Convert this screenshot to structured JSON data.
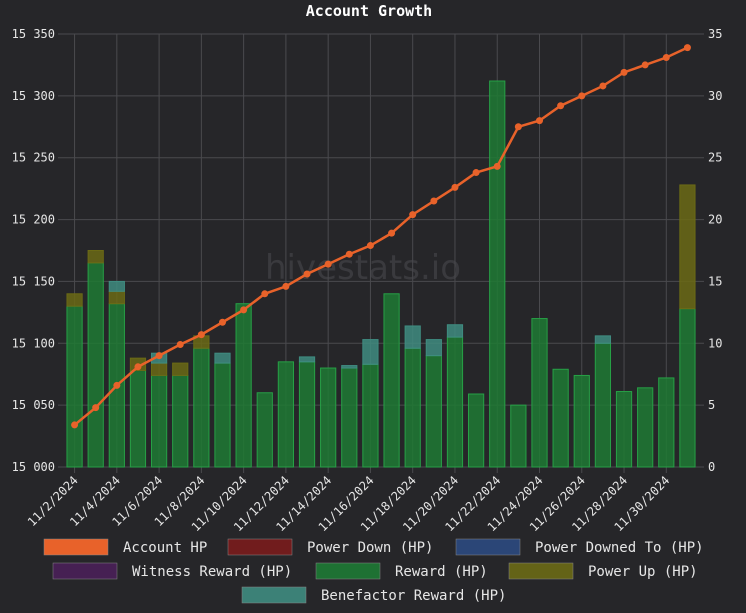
{
  "page": {
    "watermark": "hivestats.io"
  },
  "chart_data": {
    "type": "bar",
    "title": "Account Growth",
    "xlabel": "",
    "ylabel_left": "",
    "ylabel_right": "",
    "x": [
      "11/2/2024",
      "11/3/2024",
      "11/4/2024",
      "11/5/2024",
      "11/6/2024",
      "11/7/2024",
      "11/8/2024",
      "11/9/2024",
      "11/10/2024",
      "11/11/2024",
      "11/12/2024",
      "11/13/2024",
      "11/14/2024",
      "11/15/2024",
      "11/16/2024",
      "11/17/2024",
      "11/18/2024",
      "11/19/2024",
      "11/20/2024",
      "11/21/2024",
      "11/22/2024",
      "11/23/2024",
      "11/24/2024",
      "11/25/2024",
      "11/26/2024",
      "11/27/2024",
      "11/28/2024",
      "11/29/2024",
      "11/30/2024",
      "12/1/2024"
    ],
    "x_tick_labels": [
      "11/2/2024",
      "11/4/2024",
      "11/6/2024",
      "11/8/2024",
      "11/10/2024",
      "11/12/2024",
      "11/14/2024",
      "11/16/2024",
      "11/18/2024",
      "11/20/2024",
      "11/22/2024",
      "11/24/2024",
      "11/26/2024",
      "11/28/2024",
      "11/30/2024"
    ],
    "y_left": {
      "ylim": [
        15000,
        15350
      ],
      "ticks": [
        "15 000",
        "15 050",
        "15 100",
        "15 150",
        "15 200",
        "15 250",
        "15 300",
        "15 350"
      ]
    },
    "y_right": {
      "ylim": [
        0,
        35
      ],
      "ticks": [
        "0",
        "5",
        "10",
        "15",
        "20",
        "25",
        "30",
        "35"
      ]
    },
    "grid": true,
    "legend_position": "bottom",
    "series": [
      {
        "name": "Account HP",
        "type": "line",
        "axis": "left",
        "color": "#e8622a",
        "values": [
          15034,
          15048,
          15066,
          15081,
          15090,
          15099,
          15107,
          15117,
          15127,
          15140,
          15146,
          15156,
          15164,
          15172,
          15179,
          15189,
          15204,
          15215,
          15226,
          15238,
          15243,
          15275,
          15280,
          15292,
          15300,
          15308,
          15319,
          15325,
          15331,
          15339
        ]
      },
      {
        "name": "Power Down (HP)",
        "type": "bar",
        "axis": "right",
        "color": "#7a1c1c",
        "values": [
          0,
          0,
          0,
          0,
          0,
          0,
          0,
          0,
          0,
          0,
          0,
          0,
          0,
          0,
          0,
          0,
          0,
          0,
          0,
          0,
          0,
          0,
          0,
          0,
          0,
          0,
          0,
          0,
          0,
          0
        ]
      },
      {
        "name": "Power Downed To (HP)",
        "type": "bar",
        "axis": "right",
        "color": "#2c4a80",
        "values": [
          0,
          0,
          0,
          0,
          0,
          0,
          0,
          0,
          0,
          0,
          0,
          0,
          0,
          0,
          0,
          0,
          0,
          0,
          0,
          0,
          0,
          0,
          0,
          0,
          0,
          0,
          0,
          0,
          0,
          0
        ]
      },
      {
        "name": "Witness Reward (HP)",
        "type": "bar",
        "axis": "right",
        "color": "#4a2058",
        "values": [
          0,
          0,
          0,
          0,
          0,
          0,
          0,
          0,
          0,
          0,
          0,
          0,
          0,
          0,
          0,
          0,
          0,
          0,
          0,
          0,
          0,
          0,
          0,
          0,
          0,
          0,
          0,
          0,
          0,
          0
        ]
      },
      {
        "name": "Reward (HP)",
        "type": "bar",
        "axis": "right",
        "color": "#1e7a34",
        "values": [
          13,
          16.5,
          13.2,
          7.8,
          7.4,
          7.4,
          9.6,
          8.4,
          13.2,
          6,
          8.5,
          8.5,
          8,
          8,
          8.3,
          14,
          9.6,
          9,
          10.5,
          5.9,
          31.2,
          5,
          12,
          7.9,
          7.4,
          10,
          6.1,
          6.4,
          7.2,
          12.8
        ]
      },
      {
        "name": "Power Up (HP)",
        "type": "bar",
        "axis": "right",
        "color": "#6b6a15",
        "values": [
          1,
          1,
          1,
          1,
          1,
          1,
          1,
          0,
          0,
          0,
          0,
          0,
          0,
          0,
          0,
          0,
          0,
          0,
          0,
          0,
          0,
          0,
          0,
          0,
          0,
          0,
          0,
          0,
          0,
          10
        ]
      },
      {
        "name": "Benefactor Reward (HP)",
        "type": "bar",
        "axis": "right",
        "color": "#3f8c80",
        "values": [
          0,
          0,
          0.8,
          0,
          0.8,
          0,
          0,
          0.8,
          0,
          0,
          0,
          0.4,
          0,
          0.2,
          2,
          0,
          1.8,
          1.3,
          1,
          0,
          0,
          0,
          0,
          0,
          0,
          0.6,
          0,
          0,
          0,
          0
        ]
      }
    ]
  }
}
